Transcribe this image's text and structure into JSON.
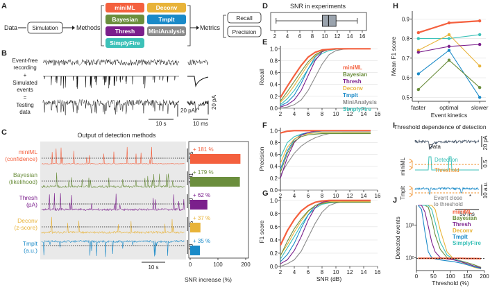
{
  "colors": {
    "miniML": "#f4603e",
    "Bayesian": "#6b8e3d",
    "Thresh": "#7b1f8c",
    "Deconv": "#e8b339",
    "Tmplt": "#1a8ac8",
    "MiniAnalysis": "#8a8a8a",
    "SimplyFire": "#3cc1b8"
  },
  "panelA": {
    "label": "A",
    "data_label": "Data",
    "simulation": "Simulation",
    "methods_label": "Methods",
    "methods": [
      "miniML",
      "Deconv",
      "Bayesian",
      "Tmplt",
      "Thresh",
      "MiniAnalysis",
      "SimplyFire"
    ],
    "metrics_label": "Metrics",
    "metrics": [
      "Recall",
      "Precision"
    ]
  },
  "panelB": {
    "label": "B",
    "rows": [
      "Event-free",
      "recording",
      "+",
      "Simulated",
      "events",
      "=",
      "Testing",
      "data"
    ],
    "scale_pa": "20 pA",
    "scale_s": "10 s",
    "scale_pa2": "20 pA",
    "scale_ms": "10 ms"
  },
  "panelC": {
    "label": "C",
    "title": "Output of detection methods",
    "rows": [
      {
        "name": "miniML",
        "unit": "(confidence)",
        "scale": "0.5",
        "pct": "+ 181 %",
        "value": 181
      },
      {
        "name": "Bayesian",
        "unit": "(likelihood)",
        "scale": "0.01",
        "pct": "+ 179 %",
        "value": 179
      },
      {
        "name": "Thresh",
        "unit": "(pA)",
        "scale": "20",
        "pct": "+ 62 %",
        "value": 62
      },
      {
        "name": "Deconv",
        "unit": "(z-score)",
        "scale": "25",
        "pct": "+ 37 %",
        "value": 37
      },
      {
        "name": "Tmplt",
        "unit": "(a.u.)",
        "scale": "10",
        "pct": "+ 35 %",
        "value": 35
      }
    ],
    "scale_s": "10 s",
    "xlabel": "SNR increase (%)",
    "xticks": [
      "0",
      "100",
      "200"
    ]
  },
  "panelD": {
    "label": "D",
    "title": "SNR in experiments",
    "xticks": [
      "2",
      "4",
      "6",
      "8",
      "10",
      "12",
      "14",
      "16"
    ],
    "box": {
      "whisker_low": 2.2,
      "q1": 9.6,
      "median": 10.6,
      "q3": 11.8,
      "whisker_high": 15.2
    }
  },
  "chart_data": [
    {
      "type": "line",
      "panel": "E",
      "ylabel": "Recall",
      "xticks": [
        "2",
        "4",
        "6",
        "8",
        "10",
        "12",
        "14",
        "16"
      ],
      "yticks": [
        "0.0",
        "0.2",
        "0.4",
        "0.6",
        "0.8",
        "1.0"
      ],
      "x": [
        2,
        3,
        4,
        5,
        6,
        7,
        8,
        9,
        10,
        11,
        12,
        13,
        14,
        15
      ],
      "ylim": [
        0,
        1.05
      ],
      "series": [
        {
          "name": "miniML",
          "values": [
            0.18,
            0.37,
            0.55,
            0.72,
            0.86,
            0.94,
            0.98,
            0.99,
            1.0,
            1.0,
            1.0,
            1.0,
            1.0,
            1.0
          ]
        },
        {
          "name": "Bayesian",
          "values": [
            0.12,
            0.28,
            0.45,
            0.62,
            0.78,
            0.9,
            0.96,
            0.99,
            1.0,
            1.0,
            1.0,
            1.0,
            1.0,
            1.0
          ]
        },
        {
          "name": "Thresh",
          "values": [
            0.02,
            0.06,
            0.14,
            0.3,
            0.55,
            0.8,
            0.95,
            0.99,
            1.0,
            1.0,
            1.0,
            1.0,
            1.0,
            1.0
          ]
        },
        {
          "name": "Deconv",
          "values": [
            0.1,
            0.22,
            0.38,
            0.56,
            0.74,
            0.88,
            0.96,
            0.99,
            1.0,
            1.0,
            1.0,
            1.0,
            1.0,
            1.0
          ]
        },
        {
          "name": "Tmplt",
          "values": [
            0.04,
            0.1,
            0.22,
            0.42,
            0.66,
            0.86,
            0.96,
            0.99,
            1.0,
            1.0,
            1.0,
            1.0,
            1.0,
            1.0
          ]
        },
        {
          "name": "MiniAnalysis",
          "values": [
            0.0,
            0.02,
            0.06,
            0.14,
            0.3,
            0.52,
            0.74,
            0.9,
            0.97,
            0.99,
            1.0,
            1.0,
            1.0,
            1.0
          ]
        },
        {
          "name": "SimplyFire",
          "values": [
            0.06,
            0.16,
            0.3,
            0.48,
            0.66,
            0.82,
            0.92,
            0.97,
            0.99,
            1.0,
            1.0,
            1.0,
            1.0,
            1.0
          ]
        }
      ]
    },
    {
      "type": "line",
      "panel": "F",
      "ylabel": "Precision",
      "xticks": [
        "2",
        "4",
        "6",
        "8",
        "10",
        "12",
        "14",
        "16"
      ],
      "yticks": [
        "0.0",
        "0.2",
        "0.4",
        "0.6",
        "0.8",
        "1.0"
      ],
      "x": [
        2,
        3,
        4,
        5,
        6,
        7,
        8,
        9,
        10,
        11,
        12,
        13,
        14,
        15
      ],
      "ylim": [
        0,
        1.05
      ],
      "series": [
        {
          "name": "miniML",
          "values": [
            0.96,
            0.99,
            1.0,
            1.0,
            1.0,
            1.0,
            1.0,
            1.0,
            1.0,
            1.0,
            1.0,
            1.0,
            1.0,
            1.0
          ]
        },
        {
          "name": "Bayesian",
          "values": [
            0.3,
            0.62,
            0.82,
            0.9,
            0.93,
            0.94,
            0.95,
            0.95,
            0.95,
            0.95,
            0.95,
            0.95,
            0.95,
            0.95
          ]
        },
        {
          "name": "Thresh",
          "values": [
            0.2,
            0.55,
            0.8,
            0.92,
            0.97,
            0.99,
            1.0,
            1.0,
            1.0,
            1.0,
            1.0,
            1.0,
            1.0,
            1.0
          ]
        },
        {
          "name": "Deconv",
          "values": [
            0.45,
            0.72,
            0.86,
            0.92,
            0.95,
            0.96,
            0.97,
            0.97,
            0.97,
            0.97,
            0.97,
            0.97,
            0.97,
            0.97
          ]
        },
        {
          "name": "Tmplt",
          "values": [
            0.35,
            0.66,
            0.85,
            0.94,
            0.97,
            0.98,
            0.99,
            0.99,
            0.99,
            0.99,
            0.99,
            0.99,
            0.99,
            0.99
          ]
        },
        {
          "name": "MiniAnalysis",
          "values": [
            0.25,
            0.45,
            0.62,
            0.74,
            0.82,
            0.88,
            0.92,
            0.95,
            0.96,
            0.97,
            0.97,
            0.97,
            0.97,
            0.97
          ]
        },
        {
          "name": "SimplyFire",
          "values": [
            0.55,
            0.8,
            0.9,
            0.94,
            0.95,
            0.96,
            0.96,
            0.96,
            0.96,
            0.96,
            0.96,
            0.96,
            0.96,
            0.96
          ]
        }
      ]
    },
    {
      "type": "line",
      "panel": "G",
      "ylabel": "F1 score",
      "xlabel": "SNR (dB)",
      "xticks": [
        "2",
        "4",
        "6",
        "8",
        "10",
        "12",
        "14",
        "16"
      ],
      "yticks": [
        "0.0",
        "0.2",
        "0.4",
        "0.6",
        "0.8",
        "1.0"
      ],
      "x": [
        2,
        3,
        4,
        5,
        6,
        7,
        8,
        9,
        10,
        11,
        12,
        13,
        14,
        15
      ],
      "ylim": [
        0,
        1.05
      ],
      "series": [
        {
          "name": "miniML",
          "values": [
            0.32,
            0.54,
            0.71,
            0.84,
            0.92,
            0.97,
            0.99,
            1.0,
            1.0,
            1.0,
            1.0,
            1.0,
            1.0,
            1.0
          ]
        },
        {
          "name": "Bayesian",
          "values": [
            0.16,
            0.38,
            0.57,
            0.72,
            0.84,
            0.92,
            0.95,
            0.97,
            0.97,
            0.97,
            0.97,
            0.97,
            0.97,
            0.97
          ]
        },
        {
          "name": "Thresh",
          "values": [
            0.04,
            0.1,
            0.24,
            0.45,
            0.7,
            0.89,
            0.97,
            0.99,
            1.0,
            1.0,
            1.0,
            1.0,
            1.0,
            1.0
          ]
        },
        {
          "name": "Deconv",
          "values": [
            0.17,
            0.33,
            0.52,
            0.69,
            0.83,
            0.92,
            0.96,
            0.98,
            0.98,
            0.98,
            0.98,
            0.98,
            0.98,
            0.98
          ]
        },
        {
          "name": "Tmplt",
          "values": [
            0.07,
            0.18,
            0.35,
            0.58,
            0.78,
            0.92,
            0.97,
            0.99,
            0.99,
            0.99,
            0.99,
            0.99,
            0.99,
            0.99
          ]
        },
        {
          "name": "MiniAnalysis",
          "values": [
            0.0,
            0.04,
            0.1,
            0.23,
            0.44,
            0.65,
            0.82,
            0.92,
            0.96,
            0.98,
            0.98,
            0.98,
            0.98,
            0.98
          ]
        },
        {
          "name": "SimplyFire",
          "values": [
            0.11,
            0.28,
            0.45,
            0.63,
            0.78,
            0.88,
            0.94,
            0.96,
            0.97,
            0.98,
            0.98,
            0.98,
            0.98,
            0.98
          ]
        }
      ]
    },
    {
      "type": "line",
      "panel": "H",
      "ylabel": "Mean F1 score",
      "xlabel": "Event kinetics",
      "categories": [
        "faster",
        "optimal",
        "slower"
      ],
      "yticks": [
        "0.5",
        "0.6",
        "0.7",
        "0.8",
        "0.9"
      ],
      "ylim": [
        0.48,
        0.94
      ],
      "series": [
        {
          "name": "miniML",
          "values": [
            0.83,
            0.88,
            0.89
          ]
        },
        {
          "name": "Bayesian",
          "values": [
            0.54,
            0.69,
            0.55
          ]
        },
        {
          "name": "Thresh",
          "values": [
            0.73,
            0.76,
            0.77
          ]
        },
        {
          "name": "Deconv",
          "values": [
            0.74,
            0.82,
            0.66
          ]
        },
        {
          "name": "Tmplt",
          "values": [
            0.62,
            0.74,
            0.5
          ]
        },
        {
          "name": "SimplyFire",
          "values": [
            0.8,
            0.8,
            0.82
          ]
        }
      ]
    },
    {
      "type": "line",
      "panel": "J",
      "ylabel": "Detected events",
      "xlabel": "Threshold (%)",
      "xticks": [
        "0",
        "50",
        "100",
        "150",
        "200"
      ],
      "yticks": [
        "10²",
        "10³"
      ],
      "yscale": "log",
      "x": [
        5,
        15,
        25,
        35,
        45,
        55,
        70,
        90,
        110,
        130,
        150,
        170,
        190
      ],
      "ylim": [
        40,
        4000
      ],
      "series": [
        {
          "name": "miniML",
          "values": [
            95,
            95,
            95,
            95,
            95,
            95,
            95,
            95,
            95,
            95,
            94,
            94,
            93
          ]
        },
        {
          "name": "Bayesian",
          "values": [
            4000,
            4000,
            4000,
            3500,
            1500,
            500,
            180,
            100,
            90,
            80,
            70,
            60,
            50
          ]
        },
        {
          "name": "Thresh",
          "values": [
            4000,
            4000,
            2500,
            900,
            300,
            150,
            100,
            90,
            85,
            75,
            65,
            55,
            48
          ]
        },
        {
          "name": "Deconv",
          "values": [
            4000,
            4000,
            4000,
            4000,
            4000,
            3000,
            700,
            150,
            90,
            75,
            60,
            50,
            45
          ]
        },
        {
          "name": "Tmplt",
          "values": [
            4000,
            3000,
            600,
            150,
            100,
            90,
            85,
            80,
            75,
            68,
            60,
            52,
            46
          ]
        },
        {
          "name": "SimplyFire",
          "values": [
            4000,
            4000,
            4000,
            4000,
            3000,
            1200,
            300,
            120,
            90,
            78,
            65,
            55,
            48
          ]
        }
      ]
    }
  ],
  "panelE": {
    "label": "E",
    "legend": [
      "miniML",
      "Bayesian",
      "Thresh",
      "Deconv",
      "Tmplt",
      "MiniAnalysis",
      "SimplyFire"
    ]
  },
  "panelF": {
    "label": "F"
  },
  "panelG": {
    "label": "G"
  },
  "panelH": {
    "label": "H"
  },
  "panelI": {
    "label": "I",
    "title": "Threshold dependence of detection",
    "data_label": "Data",
    "detection_label": "Detection",
    "threshold_label": "Threshold",
    "event_close": "Event close",
    "to_threshold": "to threshold",
    "miniml_label": "miniML",
    "tmplt_label": "Tmplt",
    "scale_pa": "20 pA",
    "scale_half": "0.5",
    "scale_au": "10 a.u.",
    "scale_ms": "50 ms"
  },
  "panelJ": {
    "label": "J",
    "legend": [
      "miniML",
      "Bayesian",
      "Thresh",
      "Deconv",
      "Tmplt",
      "SimplyFire"
    ]
  }
}
